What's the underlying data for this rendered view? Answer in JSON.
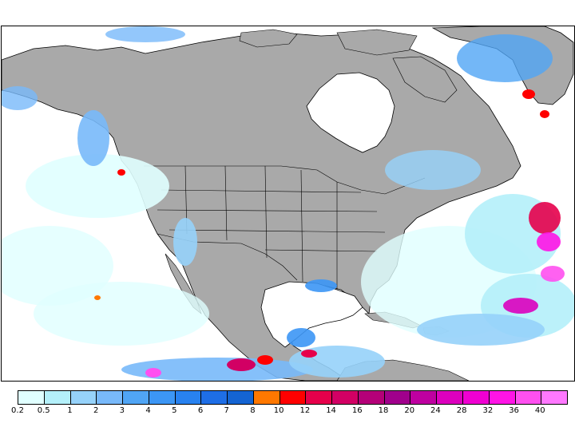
{
  "map": {
    "colors": {
      "ocean": "#ffffff",
      "land": "#a9a9a9",
      "border": "#000000"
    }
  },
  "legend": {
    "labels": [
      "0.2",
      "0.5",
      "1",
      "2",
      "3",
      "4",
      "5",
      "6",
      "7",
      "8",
      "10",
      "12",
      "14",
      "16",
      "18",
      "20",
      "24",
      "28",
      "32",
      "36",
      "40"
    ],
    "colors": [
      "#e0ffff",
      "#b4f0fa",
      "#96d2fa",
      "#78b9fa",
      "#50a5f5",
      "#3c96f5",
      "#2882f0",
      "#1e6ee6",
      "#1464d2",
      "#ff7800",
      "#ff0000",
      "#e6004b",
      "#d20064",
      "#b40078",
      "#a0008c",
      "#be00a0",
      "#dc00be",
      "#f000d2",
      "#ff14e6",
      "#ff50f0",
      "#ff78ff"
    ]
  }
}
